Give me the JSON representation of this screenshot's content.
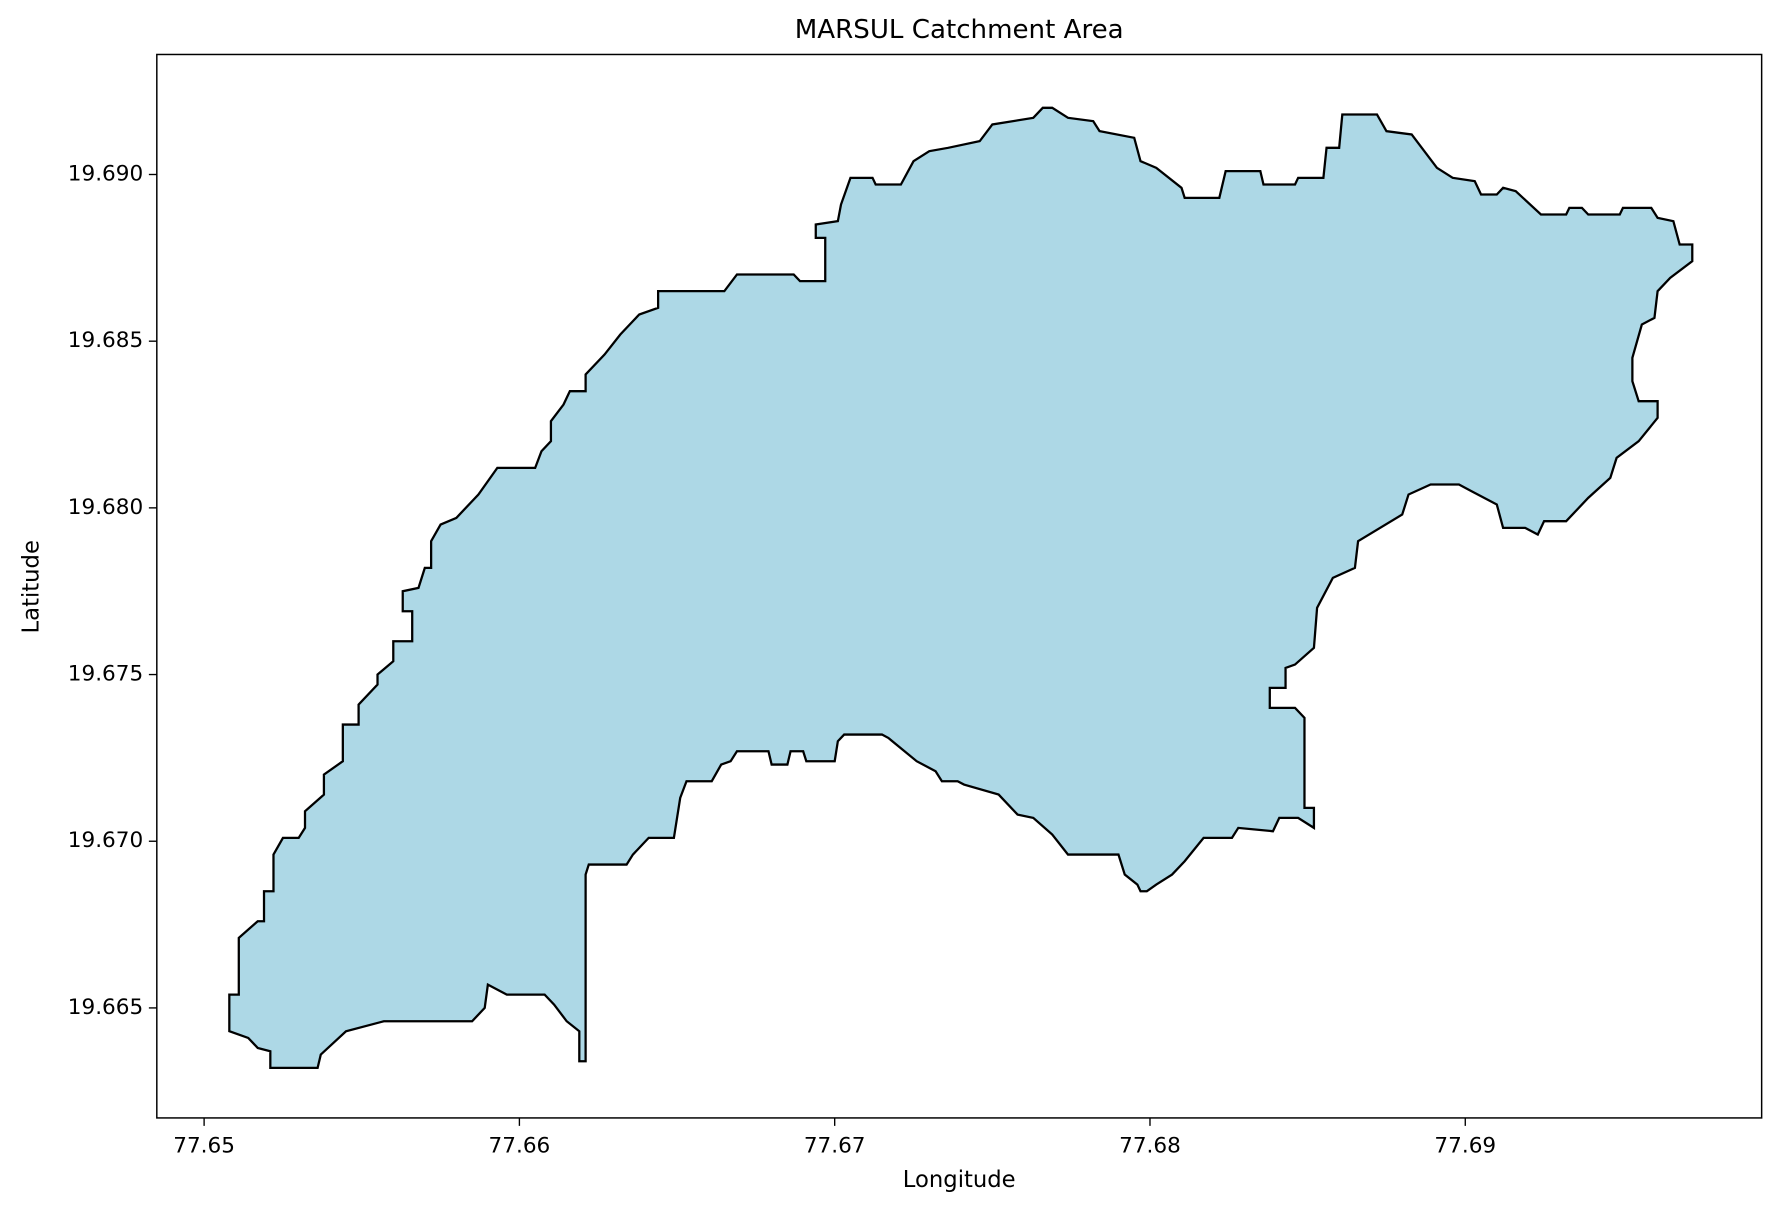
{
  "chart_data": {
    "type": "polygon",
    "title": "MARSUL Catchment Area",
    "xlabel": "Longitude",
    "ylabel": "Latitude",
    "fill": "#add8e6",
    "edgecolor": "#000000",
    "xlim": [
      77.6485,
      77.6994
    ],
    "ylim": [
      19.6617,
      19.6936
    ],
    "xticks": [
      77.65,
      77.66,
      77.67,
      77.68,
      77.69
    ],
    "yticks": [
      19.665,
      {
        "value": 19.67,
        "label": "19.670"
      },
      19.675,
      {
        "value": 19.68,
        "label": "19.680"
      },
      19.685,
      {
        "value": 19.69,
        "label": "19.690"
      }
    ],
    "x": [
      77.6508,
      77.6511,
      77.6511,
      77.6517,
      77.6519,
      77.6519,
      77.6522,
      77.6522,
      77.6525,
      77.653,
      77.6532,
      77.6532,
      77.6538,
      77.6538,
      77.6544,
      77.6544,
      77.6549,
      77.6549,
      77.6555,
      77.6555,
      77.656,
      77.656,
      77.6566,
      77.6566,
      77.6563,
      77.6563,
      77.6568,
      77.657,
      77.6572,
      77.6572,
      77.6575,
      77.658,
      77.6587,
      77.6593,
      77.6605,
      77.6607,
      77.661,
      77.661,
      77.6614,
      77.6616,
      77.6621,
      77.6621,
      77.6627,
      77.6632,
      77.6638,
      77.6644,
      77.6644,
      77.6665,
      77.6669,
      77.6687,
      77.6689,
      77.6697,
      77.6697,
      77.6694,
      77.6694,
      77.6701,
      77.6702,
      77.6705,
      77.6712,
      77.6713,
      77.6721,
      77.6725,
      77.673,
      77.6736,
      77.6746,
      77.675,
      77.6763,
      77.6766,
      77.6769,
      77.6774,
      77.6782,
      77.6784,
      77.6795,
      77.6797,
      77.6802,
      77.681,
      77.6811,
      77.6822,
      77.6824,
      77.6835,
      77.6836,
      77.6846,
      77.6847,
      77.6855,
      77.6856,
      77.686,
      77.6861,
      77.6872,
      77.6875,
      77.6883,
      77.6891,
      77.6896,
      77.6903,
      77.6905,
      77.691,
      77.6912,
      77.6916,
      77.6924,
      77.6932,
      77.6933,
      77.6937,
      77.6939,
      77.6949,
      77.695,
      77.6959,
      77.6961,
      77.6966,
      77.6968,
      77.6972,
      77.6972,
      77.6965,
      77.6961,
      77.696,
      77.6956,
      77.6953,
      77.6953,
      77.6955,
      77.6961,
      77.6961,
      77.6955,
      77.6948,
      77.6946,
      77.6939,
      77.6932,
      77.6925,
      77.6923,
      77.6919,
      77.6912,
      77.691,
      77.6902,
      77.6898,
      77.6889,
      77.6882,
      77.688,
      77.6866,
      77.6865,
      77.6858,
      77.6853,
      77.6852,
      77.6846,
      77.6843,
      77.6843,
      77.6838,
      77.6838,
      77.6846,
      77.6849,
      77.6849,
      77.6852,
      77.6852,
      77.6847,
      77.6841,
      77.6839,
      77.6828,
      77.6826,
      77.6817,
      77.6811,
      77.6807,
      77.6802,
      77.6799,
      77.6797,
      77.6796,
      77.6792,
      77.679,
      77.6774,
      77.6769,
      77.6763,
      77.6758,
      77.6752,
      77.6741,
      77.6739,
      77.6734,
      77.6732,
      77.6726,
      77.6717,
      77.6715,
      77.6703,
      77.6701,
      77.67,
      77.6691,
      77.669,
      77.6686,
      77.6685,
      77.668,
      77.6679,
      77.6669,
      77.6667,
      77.6664,
      77.6661,
      77.6653,
      77.6651,
      77.6649,
      77.6641,
      77.6636,
      77.6634,
      77.6622,
      77.6621,
      77.6621,
      77.6619,
      77.6619,
      77.6615,
      77.6611,
      77.6608,
      77.6596,
      77.659,
      77.6589,
      77.6585,
      77.6557,
      77.6545,
      77.6537,
      77.6536,
      77.6521,
      77.6521,
      77.6517,
      77.6514,
      77.6508
    ],
    "values": [
      19.6654,
      19.6654,
      19.6671,
      19.6676,
      19.6676,
      19.6685,
      19.6685,
      19.6696,
      19.6701,
      19.6701,
      19.6704,
      19.6709,
      19.6714,
      19.672,
      19.6724,
      19.6735,
      19.6735,
      19.6741,
      19.6747,
      19.675,
      19.6754,
      19.676,
      19.676,
      19.6769,
      19.6769,
      19.6775,
      19.6776,
      19.6782,
      19.6782,
      19.679,
      19.6795,
      19.6797,
      19.6804,
      19.6812,
      19.6812,
      19.6817,
      19.682,
      19.6826,
      19.6831,
      19.6835,
      19.6835,
      19.684,
      19.6846,
      19.6852,
      19.6858,
      19.686,
      19.6865,
      19.6865,
      19.687,
      19.687,
      19.6868,
      19.6868,
      19.6881,
      19.6881,
      19.6885,
      19.6886,
      19.6891,
      19.6899,
      19.6899,
      19.6897,
      19.6897,
      19.6904,
      19.6907,
      19.6908,
      19.691,
      19.6915,
      19.6917,
      19.692,
      19.692,
      19.6917,
      19.6916,
      19.6913,
      19.6911,
      19.6904,
      19.6902,
      19.6896,
      19.6893,
      19.6893,
      19.6901,
      19.6901,
      19.6897,
      19.6897,
      19.6899,
      19.6899,
      19.6908,
      19.6908,
      19.6918,
      19.6918,
      19.6913,
      19.6912,
      19.6902,
      19.6899,
      19.6898,
      19.6894,
      19.6894,
      19.6896,
      19.6895,
      19.6888,
      19.6888,
      19.689,
      19.689,
      19.6888,
      19.6888,
      19.689,
      19.689,
      19.6887,
      19.6886,
      19.6879,
      19.6879,
      19.6874,
      19.6869,
      19.6865,
      19.6857,
      19.6855,
      19.6845,
      19.6838,
      19.6832,
      19.6832,
      19.6827,
      19.682,
      19.6815,
      19.6809,
      19.6803,
      19.6796,
      19.6796,
      19.6792,
      19.6794,
      19.6794,
      19.6801,
      19.6805,
      19.6807,
      19.6807,
      19.6804,
      19.6798,
      19.679,
      19.6782,
      19.6779,
      19.677,
      19.6758,
      19.6753,
      19.6752,
      19.6746,
      19.6746,
      19.674,
      19.674,
      19.6737,
      19.671,
      19.671,
      19.6704,
      19.6707,
      19.6707,
      19.6703,
      19.6704,
      19.6701,
      19.6701,
      19.6694,
      19.669,
      19.6687,
      19.6685,
      19.6685,
      19.6687,
      19.669,
      19.6696,
      19.6696,
      19.6702,
      19.6707,
      19.6708,
      19.6714,
      19.6717,
      19.6718,
      19.6718,
      19.6721,
      19.6724,
      19.6731,
      19.6732,
      19.6732,
      19.673,
      19.6724,
      19.6724,
      19.6727,
      19.6727,
      19.6723,
      19.6723,
      19.6727,
      19.6727,
      19.6724,
      19.6723,
      19.6718,
      19.6718,
      19.6713,
      19.6701,
      19.6701,
      19.6696,
      19.6693,
      19.6693,
      19.669,
      19.6634,
      19.6634,
      19.6643,
      19.6646,
      19.6651,
      19.6654,
      19.6654,
      19.6657,
      19.665,
      19.6646,
      19.6646,
      19.6643,
      19.6636,
      19.6632,
      19.6632,
      19.6637,
      19.6638,
      19.6641,
      19.6643
    ]
  }
}
